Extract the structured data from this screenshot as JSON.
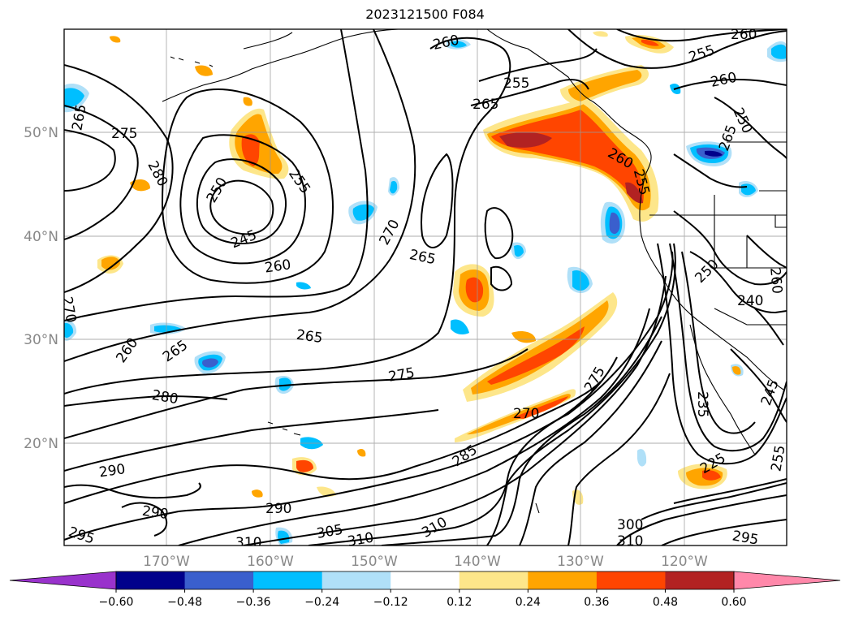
{
  "title": "2023121500 F084",
  "lat_labels": [
    "50°N",
    "40°N",
    "30°N",
    "20°N"
  ],
  "lon_labels": [
    "170°W",
    "160°W",
    "150°W",
    "140°W",
    "130°W",
    "120°W"
  ],
  "contour_labels": [
    {
      "text": "275"
    },
    {
      "text": "280"
    },
    {
      "text": "250"
    },
    {
      "text": "255"
    },
    {
      "text": "245"
    },
    {
      "text": "260"
    },
    {
      "text": "270"
    },
    {
      "text": "265"
    },
    {
      "text": "265"
    },
    {
      "text": "255"
    },
    {
      "text": "265"
    },
    {
      "text": "260"
    },
    {
      "text": "255"
    },
    {
      "text": "260"
    },
    {
      "text": "260"
    },
    {
      "text": "250"
    },
    {
      "text": "265"
    },
    {
      "text": "275"
    },
    {
      "text": "265"
    },
    {
      "text": "260"
    },
    {
      "text": "280"
    },
    {
      "text": "290"
    },
    {
      "text": "290"
    },
    {
      "text": "290"
    },
    {
      "text": "295"
    },
    {
      "text": "310"
    },
    {
      "text": "305"
    },
    {
      "text": "310"
    },
    {
      "text": "310"
    },
    {
      "text": "270"
    },
    {
      "text": "275"
    },
    {
      "text": "285"
    },
    {
      "text": "300"
    },
    {
      "text": "310"
    },
    {
      "text": "295"
    },
    {
      "text": "235"
    },
    {
      "text": "240"
    },
    {
      "text": "260"
    },
    {
      "text": "250"
    },
    {
      "text": "255"
    },
    {
      "text": "245"
    },
    {
      "text": "225"
    },
    {
      "text": "270"
    },
    {
      "text": "265"
    },
    {
      "text": "260"
    },
    {
      "text": "255"
    }
  ],
  "colorbar": {
    "colors": [
      "#9932cc",
      "#00008b",
      "#3a5fcd",
      "#00bfff",
      "#b0e0f8",
      "#ffffff",
      "#fde68a",
      "#ffa500",
      "#ff4500",
      "#b22222",
      "#ff88aa"
    ],
    "ticks": [
      "−0.60",
      "−0.48",
      "−0.36",
      "−0.24",
      "−0.12",
      "0.12",
      "0.24",
      "0.36",
      "0.48",
      "0.60"
    ]
  }
}
